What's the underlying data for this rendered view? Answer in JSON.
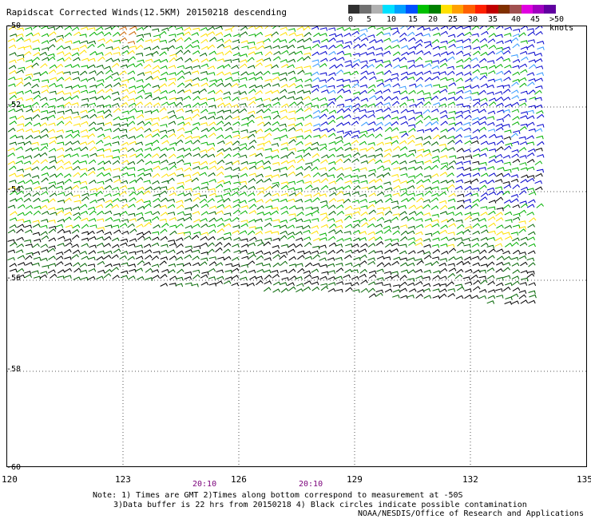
{
  "title": "Rapidscat Corrected Winds(12.5KM) 20150218 descending",
  "colorbar": {
    "colors": [
      "#303030",
      "#707070",
      "#b0b0b0",
      "#00e0ff",
      "#00a0ff",
      "#0050ff",
      "#00c000",
      "#008000",
      "#ffe000",
      "#ffa000",
      "#ff6000",
      "#ff2000",
      "#c00000",
      "#803000",
      "#a05050",
      "#e000e0",
      "#a000c0",
      "#6000a0"
    ],
    "ticks": [
      "0",
      "5",
      "10",
      "15",
      "20",
      "25",
      "30",
      "35",
      "40",
      "45",
      ">50 knots"
    ]
  },
  "map": {
    "lon_labels": [
      "120",
      "123",
      "126",
      "129",
      "132",
      "135"
    ],
    "lat_labels": [
      "-50",
      "-52",
      "-54",
      "-56",
      "-58",
      "-60"
    ],
    "time_labels": [
      "20:10",
      "20:10"
    ],
    "wind_colors": {
      "black": "#000000",
      "blue": "#0000cc",
      "light_blue": "#3399ff",
      "green": "#00b000",
      "dark_green": "#006400",
      "yellow": "#ffe000",
      "orange": "#cc6600"
    }
  },
  "notes": {
    "line1": "Note: 1) Times are GMT 2)Times along bottom correspond to measurement at -50S",
    "line2": "3)Data buffer is 22 hrs from 20150218 4) Black circles indicate possible contamination",
    "credit": "NOAA/NESDIS/Office of Research and Applications"
  }
}
